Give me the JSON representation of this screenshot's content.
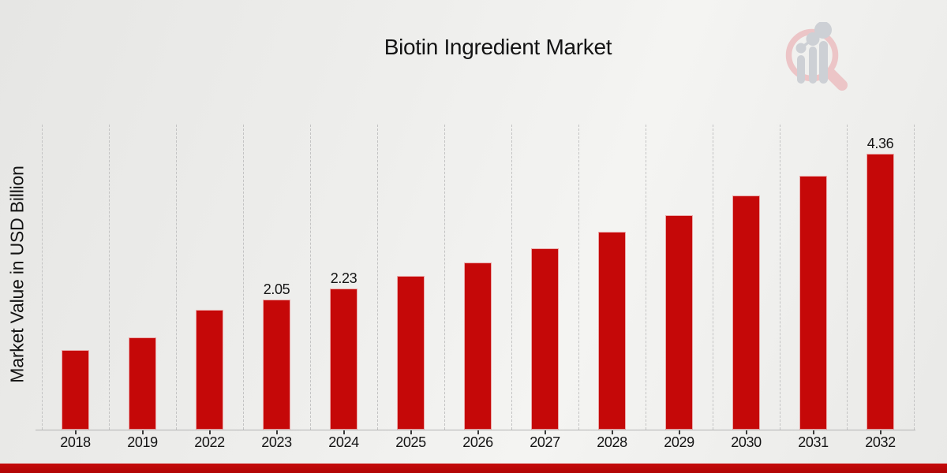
{
  "header": {
    "title": "Biotin Ingredient Market"
  },
  "y_axis": {
    "label": "Market Value in USD Billion"
  },
  "logo": {
    "name": "market-research-future-logo",
    "depicts": "magnifying glass containing rising bar chart with dots",
    "ring_color": "#ecc5c7",
    "bars_color": "#cdd0d5"
  },
  "colors": {
    "bar": "#c50808",
    "banner": "#bf0909",
    "gridline": "#c3c3c3",
    "axis_line": "#b3b3b3",
    "text": "#141414"
  },
  "chart_data": {
    "type": "bar",
    "title": "Biotin Ingredient Market",
    "xlabel": "",
    "ylabel": "Market Value in USD Billion",
    "unit": "USD Billion",
    "categories": [
      "2018",
      "2019",
      "2022",
      "2023",
      "2024",
      "2025",
      "2026",
      "2027",
      "2028",
      "2029",
      "2030",
      "2031",
      "2032"
    ],
    "values": [
      1.26,
      1.46,
      1.89,
      2.05,
      2.23,
      2.43,
      2.64,
      2.87,
      3.12,
      3.39,
      3.7,
      4.01,
      4.36
    ],
    "bar_labels": [
      "",
      "",
      "",
      "2.05",
      "2.23",
      "",
      "",
      "",
      "",
      "",
      "",
      "",
      "4.36"
    ],
    "labeled_points": [
      {
        "category": "2023",
        "value": 2.05
      },
      {
        "category": "2024",
        "value": 2.23
      },
      {
        "category": "2032",
        "value": 4.36
      }
    ],
    "ylim": [
      0,
      4.82
    ],
    "grid": "vertical-dashed",
    "legend": "none",
    "bar_color": "#c50808"
  }
}
